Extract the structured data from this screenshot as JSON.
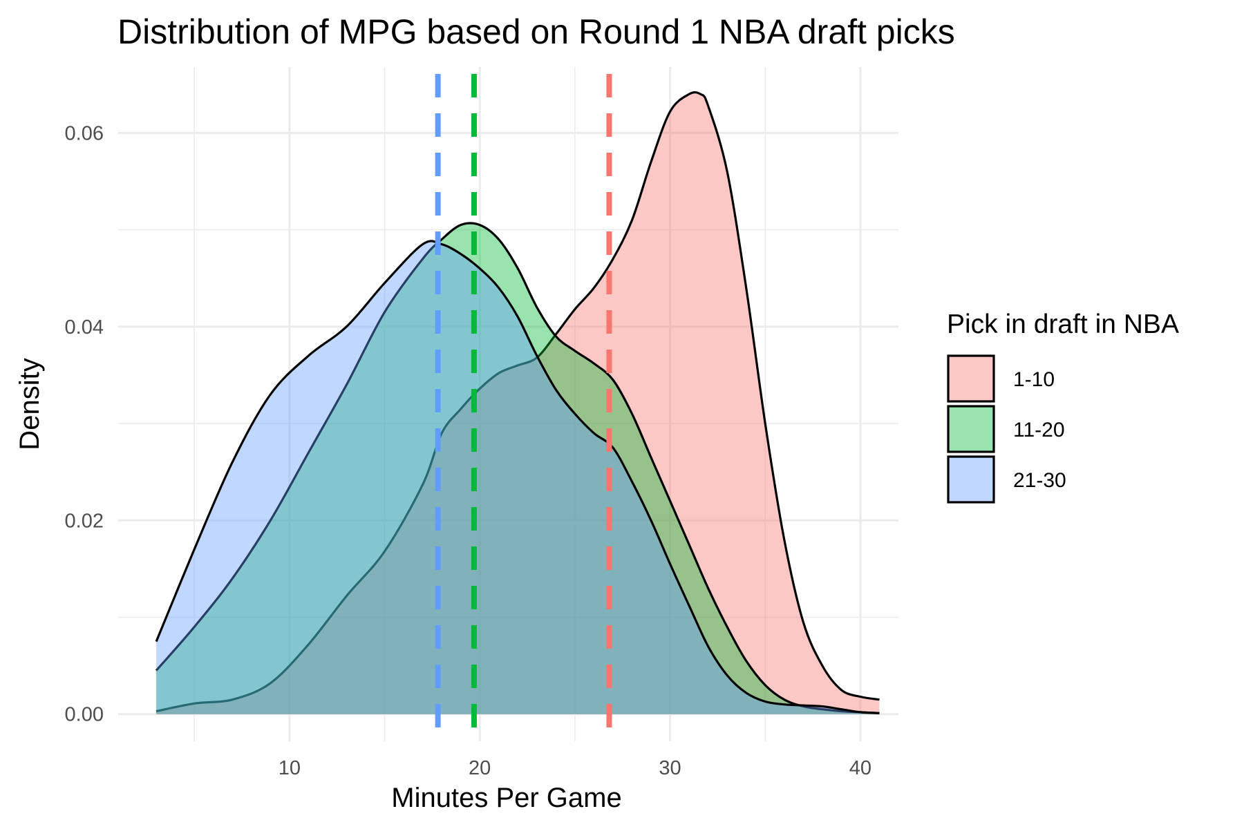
{
  "chart_data": {
    "type": "area",
    "title": "Distribution of MPG based on Round 1 NBA draft picks",
    "xlabel": "Minutes Per Game",
    "ylabel": "Density",
    "xlim": [
      1,
      42
    ],
    "ylim": [
      -0.0028,
      0.0668
    ],
    "x_ticks": [
      10,
      20,
      30,
      40
    ],
    "x_tick_labels": [
      "10",
      "20",
      "30",
      "40"
    ],
    "y_ticks": [
      0.0,
      0.02,
      0.04,
      0.06
    ],
    "y_tick_labels": [
      "0.00",
      "0.02",
      "0.04",
      "0.06"
    ],
    "grid": true,
    "legend": {
      "title": "Pick in draft in NBA",
      "position": "right"
    },
    "series": [
      {
        "name": "1-10",
        "fill": "#F8766D",
        "mean": 26.8,
        "x": [
          3,
          5,
          7,
          9,
          11,
          13,
          15,
          17,
          18,
          19,
          20,
          21,
          22,
          23,
          24,
          25,
          26,
          27,
          28,
          29,
          30,
          31,
          31.6,
          32,
          33,
          34,
          35,
          36,
          37,
          38,
          39,
          40,
          41
        ],
        "y": [
          0.0003,
          0.0011,
          0.0015,
          0.0032,
          0.0072,
          0.0122,
          0.0168,
          0.0237,
          0.029,
          0.0315,
          0.0336,
          0.0352,
          0.036,
          0.0368,
          0.0392,
          0.0418,
          0.044,
          0.047,
          0.051,
          0.057,
          0.0622,
          0.064,
          0.064,
          0.0628,
          0.056,
          0.044,
          0.03,
          0.018,
          0.0095,
          0.005,
          0.0025,
          0.0018,
          0.0015
        ]
      },
      {
        "name": "11-20",
        "fill": "#00BA38",
        "mean": 19.7,
        "x": [
          3,
          5,
          7,
          9,
          11,
          13,
          15,
          17,
          18,
          19,
          20,
          21,
          22,
          23,
          24,
          25,
          26,
          27,
          28,
          29,
          30,
          31,
          32,
          33,
          34,
          35,
          36,
          37,
          38,
          39,
          40,
          41
        ],
        "y": [
          0.0045,
          0.009,
          0.014,
          0.02,
          0.027,
          0.034,
          0.0415,
          0.047,
          0.049,
          0.0505,
          0.0505,
          0.049,
          0.046,
          0.042,
          0.039,
          0.0375,
          0.0362,
          0.0345,
          0.031,
          0.0265,
          0.022,
          0.0175,
          0.013,
          0.009,
          0.0055,
          0.003,
          0.0015,
          0.0008,
          0.0005,
          0.0003,
          0.0002,
          0.0001
        ]
      },
      {
        "name": "21-30",
        "fill": "#619CFF",
        "mean": 17.8,
        "x": [
          3,
          5,
          7,
          9,
          11,
          13,
          15,
          17,
          18,
          19,
          20,
          21,
          22,
          23,
          24,
          25,
          26,
          27,
          28,
          29,
          30,
          31,
          32,
          33,
          34,
          35,
          36,
          37,
          38,
          39,
          40,
          41
        ],
        "y": [
          0.0075,
          0.017,
          0.026,
          0.033,
          0.037,
          0.04,
          0.0445,
          0.0485,
          0.0485,
          0.0475,
          0.046,
          0.044,
          0.041,
          0.037,
          0.0335,
          0.031,
          0.029,
          0.0275,
          0.024,
          0.02,
          0.0155,
          0.0112,
          0.007,
          0.004,
          0.0022,
          0.0013,
          0.001,
          0.0009,
          0.0008,
          0.0005,
          0.0002,
          0.0001
        ]
      }
    ]
  }
}
